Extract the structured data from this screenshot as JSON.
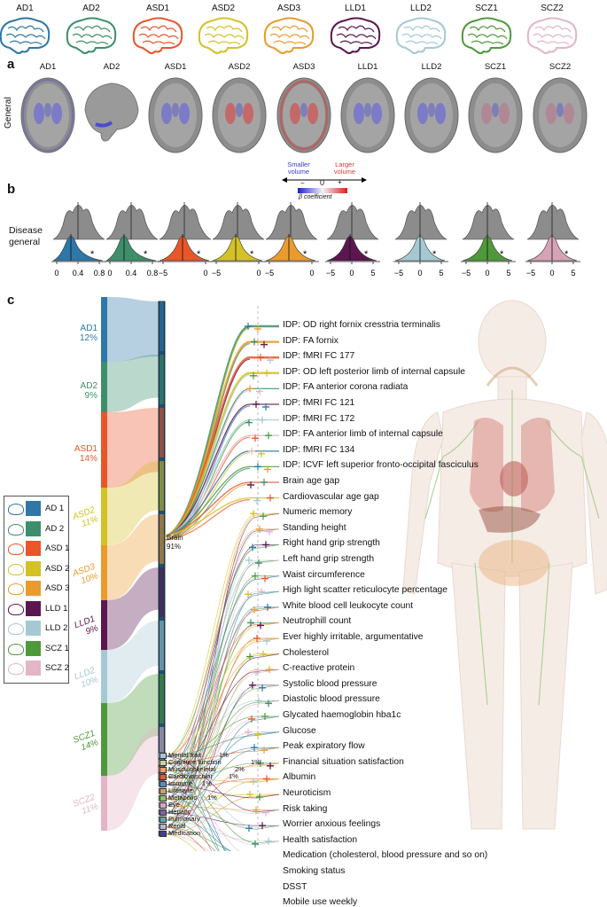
{
  "top_row": {
    "labels": [
      "AD1",
      "AD2",
      "ASD1",
      "ASD2",
      "ASD3",
      "LLD1",
      "LLD2",
      "SCZ1",
      "SCZ2"
    ],
    "colors": [
      "#2e77a8",
      "#3d8f6c",
      "#e8562a",
      "#d4c126",
      "#ea9b2d",
      "#5b1650",
      "#a5c9d3",
      "#4e9a3b",
      "#e3b5c6"
    ]
  },
  "panel_a": {
    "letter": "a",
    "row_label": "General",
    "labels": [
      "AD1",
      "AD2",
      "ASD1",
      "ASD2",
      "ASD3",
      "LLD1",
      "LLD2",
      "SCZ1",
      "SCZ2"
    ]
  },
  "colorbar": {
    "smaller": "Smaller volume",
    "larger": "Larger volume",
    "minus": "−",
    "zero": "0",
    "plus": "+",
    "caption": "β coefficient"
  },
  "panel_b": {
    "letter": "b",
    "row_label_1": "Disease",
    "row_label_2": "general",
    "star": "*",
    "plots": [
      {
        "ticks": [
          "0",
          "0.4",
          "0.8"
        ],
        "color": "#2e77a8"
      },
      {
        "ticks": [
          "0",
          "0.4",
          "0.8"
        ],
        "color": "#3d8f6c"
      },
      {
        "ticks": [
          "−5",
          "0"
        ],
        "color": "#e8562a"
      },
      {
        "ticks": [
          "−5",
          "0"
        ],
        "color": "#d4c126"
      },
      {
        "ticks": [
          "−5",
          "0"
        ],
        "color": "#ea9b2d"
      },
      {
        "ticks": [
          "−5",
          "0",
          "5"
        ],
        "color": "#5b1650"
      },
      {
        "ticks": [
          "−5",
          "0",
          "5"
        ],
        "color": "#a5c9d3"
      },
      {
        "ticks": [
          "−5",
          "0",
          "5"
        ],
        "color": "#4e9a3b"
      },
      {
        "ticks": [
          "−5",
          "0",
          "5"
        ],
        "color": "#d6a3b6"
      }
    ]
  },
  "panel_c": {
    "letter": "c",
    "sankey_labels": [
      {
        "name": "AD1",
        "pct": "12%",
        "color": "#2e77a8"
      },
      {
        "name": "AD2",
        "pct": "9%",
        "color": "#3d8f6c"
      },
      {
        "name": "ASD1",
        "pct": "14%",
        "color": "#e8562a"
      },
      {
        "name": "ASD2",
        "pct": "11%",
        "color": "#d4c126"
      },
      {
        "name": "ASD3",
        "pct": "10%",
        "color": "#ea9b2d"
      },
      {
        "name": "LLD1",
        "pct": "9%",
        "color": "#5b1650"
      },
      {
        "name": "LLD2",
        "pct": "10%",
        "color": "#a5c9d3"
      },
      {
        "name": "SCZ1",
        "pct": "14%",
        "color": "#4e9a3b"
      },
      {
        "name": "SCZ2",
        "pct": "11%",
        "color": "#e3b5c6"
      }
    ],
    "legend": [
      {
        "label": "AD 1",
        "color": "#2e77a8"
      },
      {
        "label": "AD 2",
        "color": "#3d8f6c"
      },
      {
        "label": "ASD 1",
        "color": "#e8562a"
      },
      {
        "label": "ASD 2",
        "color": "#d4c126"
      },
      {
        "label": "ASD 3",
        "color": "#ea9b2d"
      },
      {
        "label": "LLD 1",
        "color": "#5b1650"
      },
      {
        "label": "LLD 2",
        "color": "#a5c9d3"
      },
      {
        "label": "SCZ 1",
        "color": "#4e9a3b"
      },
      {
        "label": "SCZ 2",
        "color": "#e3b5c6"
      }
    ],
    "brain_node": {
      "label": "Brain",
      "pct": "91%"
    },
    "categories": [
      {
        "label": "Mental trait",
        "pct": "1%",
        "color": "#a8c6d8"
      },
      {
        "label": "Cognitive function",
        "pct": "1%",
        "color": "#cfd0a0"
      },
      {
        "label": "Musculoskeletal",
        "pct": "2%",
        "color": "#e9a06a"
      },
      {
        "label": "Cardiovascular",
        "pct": "1%",
        "color": "#e05a3a"
      },
      {
        "label": "Immune",
        "pct": "1%",
        "color": "#5a8bbf"
      },
      {
        "label": "Lifestyle",
        "pct": "",
        "color": "#c9a06e"
      },
      {
        "label": "Metabolic",
        "pct": "1%",
        "color": "#8fbf6e"
      },
      {
        "label": "Eye",
        "pct": "",
        "color": "#d3a5c8"
      },
      {
        "label": "Hepatic",
        "pct": "",
        "color": "#7f5f9f"
      },
      {
        "label": "Pulmonary",
        "pct": "",
        "color": "#5fa5a5"
      },
      {
        "label": "Renal",
        "pct": "",
        "color": "#b5b5d5"
      },
      {
        "label": "Medication",
        "pct": "",
        "color": "#40408f"
      }
    ],
    "traits": [
      "IDP: OD right fornix cresstria terminalis",
      "IDP: FA fornix",
      "IDP: fMRI FC 177",
      "IDP: OD left posterior limb of internal capsule",
      "IDP: FA anterior corona radiata",
      "IDP: fMRI FC 121",
      "IDP: fMRI FC 172",
      "IDP: FA anterior limb of internal capsule",
      "IDP: fMRI FC 134",
      "IDP: ICVF left superior fronto-occipital fasciculus",
      "Brain age gap",
      "Cardiovascular age gap",
      "Numeric memory",
      "Standing height",
      "Right hand grip strength",
      "Left hand grip strength",
      "Waist circumference",
      "High light scatter reticulocyte percentage",
      "White blood cell leukocyte count",
      "Neutrophill count",
      "Ever highly irritable, argumentative",
      "Cholesterol",
      "C-reactive protein",
      "Systolic blood pressure",
      "Diastolic blood pressure",
      "Glycated haemoglobin hba1c",
      "Glucose",
      "Peak expiratory flow",
      "Financial situation satisfaction",
      "Albumin",
      "Neuroticism",
      "Risk taking",
      "Worrier anxious feelings",
      "Health satisfaction",
      "Medication (cholesterol, blood pressure and so on)",
      "Smoking status",
      "DSST",
      "Mobile use weekly"
    ]
  }
}
